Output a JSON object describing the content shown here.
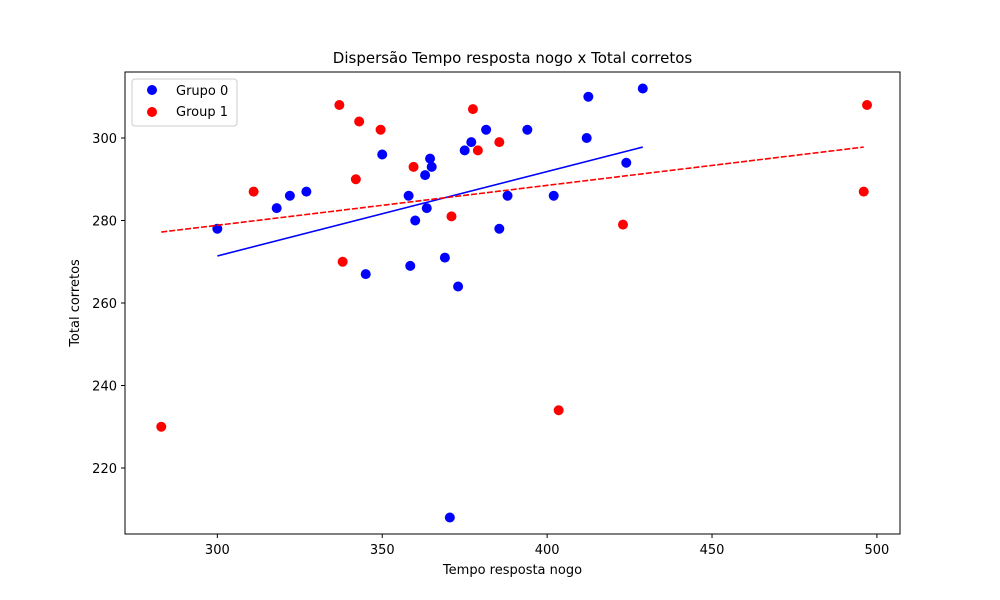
{
  "chart_data": {
    "type": "scatter",
    "title": "Dispersão Tempo resposta nogo x Total corretos",
    "xlabel": "Tempo resposta nogo",
    "ylabel": "Total corretos",
    "xlim": [
      272,
      507
    ],
    "ylim": [
      204,
      316
    ],
    "x_ticks": [
      300,
      350,
      400,
      450,
      500
    ],
    "y_ticks": [
      220,
      240,
      260,
      280,
      300
    ],
    "grid": false,
    "legend_position": "top-left",
    "series": [
      {
        "name": "Grupo 0",
        "color": "#0000ff",
        "points": [
          [
            300,
            278
          ],
          [
            318,
            283
          ],
          [
            322,
            286
          ],
          [
            327,
            287
          ],
          [
            345,
            267
          ],
          [
            350,
            296
          ],
          [
            358,
            286
          ],
          [
            358.5,
            269
          ],
          [
            360,
            280
          ],
          [
            363,
            291
          ],
          [
            363.5,
            283
          ],
          [
            364.5,
            295
          ],
          [
            365,
            293
          ],
          [
            369,
            271
          ],
          [
            370.5,
            208
          ],
          [
            373,
            264
          ],
          [
            375,
            297
          ],
          [
            377,
            299
          ],
          [
            381.5,
            302
          ],
          [
            385.5,
            278
          ],
          [
            388,
            286
          ],
          [
            394,
            302
          ],
          [
            402,
            286
          ],
          [
            412,
            300
          ],
          [
            412.5,
            310
          ],
          [
            424,
            294
          ],
          [
            429,
            312
          ]
        ],
        "trend": [
          [
            300,
            271.4
          ],
          [
            429,
            297.8
          ]
        ]
      },
      {
        "name": "Group 1",
        "color": "#ff0000",
        "points": [
          [
            283,
            230
          ],
          [
            311,
            287
          ],
          [
            337,
            308
          ],
          [
            338,
            270
          ],
          [
            342,
            290
          ],
          [
            343,
            304
          ],
          [
            349.5,
            302
          ],
          [
            359.5,
            293
          ],
          [
            371,
            281
          ],
          [
            377.5,
            307
          ],
          [
            379,
            297
          ],
          [
            385.5,
            299
          ],
          [
            403.5,
            234
          ],
          [
            423,
            279
          ],
          [
            496,
            287
          ],
          [
            497,
            308
          ]
        ],
        "trend": [
          [
            283,
            277.2
          ],
          [
            496,
            297.8
          ]
        ]
      }
    ]
  }
}
